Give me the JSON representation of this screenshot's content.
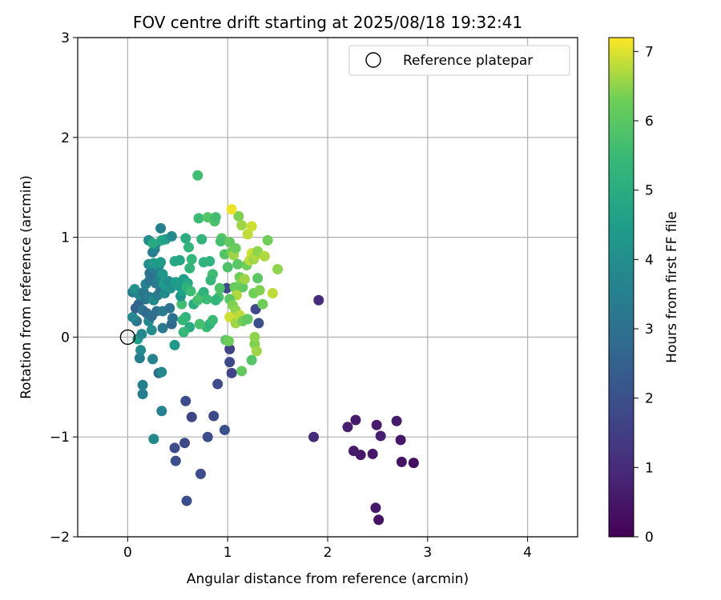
{
  "chart_data": {
    "type": "scatter",
    "title": "FOV centre drift starting at 2025/08/18 19:32:41",
    "xlabel": "Angular distance from reference (arcmin)",
    "ylabel": "Rotation from reference (arcmin)",
    "xlim": [
      -0.5,
      4.5
    ],
    "ylim": [
      -2,
      3
    ],
    "xticks": [
      "0",
      "1",
      "2",
      "3",
      "4"
    ],
    "yticks": [
      "−2",
      "−1",
      "0",
      "1",
      "2",
      "3"
    ],
    "grid": true,
    "legend": {
      "position": "top-right",
      "entries": [
        "Reference platepar"
      ]
    },
    "reference_point": {
      "x": 0,
      "y": 0
    },
    "colorbar": {
      "label": "Hours from first FF file",
      "range": [
        0,
        7.2
      ],
      "ticks": [
        "0",
        "1",
        "2",
        "3",
        "4",
        "5",
        "6",
        "7"
      ],
      "colormap": "viridis"
    },
    "series": [
      {
        "points": [
          [
            1.91,
            0.37,
            1.0
          ],
          [
            1.86,
            -1.0,
            1.0
          ],
          [
            2.2,
            -0.9,
            0.7
          ],
          [
            2.28,
            -0.83,
            0.6
          ],
          [
            2.26,
            -1.14,
            0.6
          ],
          [
            2.33,
            -1.18,
            0.5
          ],
          [
            2.45,
            -1.17,
            0.5
          ],
          [
            2.49,
            -0.88,
            0.6
          ],
          [
            2.53,
            -0.99,
            0.7
          ],
          [
            2.69,
            -0.84,
            0.6
          ],
          [
            2.73,
            -1.03,
            0.5
          ],
          [
            2.74,
            -1.25,
            0.4
          ],
          [
            2.86,
            -1.26,
            0.3
          ],
          [
            2.48,
            -1.71,
            0.5
          ],
          [
            2.51,
            -1.83,
            0.4
          ],
          [
            0.59,
            -1.64,
            1.9
          ],
          [
            0.73,
            -1.37,
            1.9
          ],
          [
            0.48,
            -1.24,
            2.0
          ],
          [
            0.47,
            -1.11,
            1.9
          ],
          [
            0.57,
            -1.06,
            1.8
          ],
          [
            0.8,
            -1.0,
            1.9
          ],
          [
            0.58,
            -0.64,
            1.9
          ],
          [
            0.64,
            -0.8,
            1.7
          ],
          [
            0.86,
            -0.79,
            1.8
          ],
          [
            0.97,
            -0.93,
            2.0
          ],
          [
            0.9,
            -0.47,
            1.9
          ],
          [
            1.04,
            -0.36,
            1.7
          ],
          [
            1.02,
            -0.25,
            1.8
          ],
          [
            1.02,
            -0.12,
            1.7
          ],
          [
            0.99,
            0.49,
            1.8
          ],
          [
            1.28,
            0.28,
            1.8
          ],
          [
            1.31,
            0.14,
            2.0
          ],
          [
            0.26,
            -1.02,
            3.8
          ],
          [
            0.34,
            -0.74,
            3.6
          ],
          [
            0.15,
            -0.48,
            3.5
          ],
          [
            0.15,
            -0.57,
            3.5
          ],
          [
            0.31,
            -0.36,
            2.8
          ],
          [
            0.34,
            -0.35,
            3.8
          ],
          [
            0.25,
            -0.22,
            3.6
          ],
          [
            0.12,
            -0.21,
            3.5
          ],
          [
            0.13,
            -0.13,
            3.9
          ],
          [
            0.47,
            -0.08,
            4.3
          ],
          [
            0.1,
            -0.02,
            4.5
          ],
          [
            0.14,
            0.03,
            3.8
          ],
          [
            0.24,
            0.07,
            4.0
          ],
          [
            0.21,
            0.16,
            3.8
          ],
          [
            0.35,
            0.09,
            3.3
          ],
          [
            0.44,
            0.13,
            2.8
          ],
          [
            0.45,
            0.19,
            3.0
          ],
          [
            0.09,
            0.16,
            3.2
          ],
          [
            0.05,
            0.2,
            3.8
          ],
          [
            0.08,
            0.29,
            2.5
          ],
          [
            0.11,
            0.33,
            2.6
          ],
          [
            0.15,
            0.27,
            3.2
          ],
          [
            0.19,
            0.24,
            2.8
          ],
          [
            0.24,
            0.21,
            2.9
          ],
          [
            0.29,
            0.26,
            3.0
          ],
          [
            0.35,
            0.26,
            3.4
          ],
          [
            0.42,
            0.29,
            3.1
          ],
          [
            0.05,
            0.45,
            3.4
          ],
          [
            0.07,
            0.48,
            4.1
          ],
          [
            0.12,
            0.42,
            3.7
          ],
          [
            0.16,
            0.45,
            3.2
          ],
          [
            0.18,
            0.38,
            3.1
          ],
          [
            0.22,
            0.4,
            3.4
          ],
          [
            0.26,
            0.37,
            3.9
          ],
          [
            0.3,
            0.42,
            3.5
          ],
          [
            0.33,
            0.47,
            3.0
          ],
          [
            0.37,
            0.44,
            3.9
          ],
          [
            0.43,
            0.49,
            4.2
          ],
          [
            0.18,
            0.53,
            3.6
          ],
          [
            0.22,
            0.57,
            3.2
          ],
          [
            0.25,
            0.6,
            3.1
          ],
          [
            0.28,
            0.54,
            3.3
          ],
          [
            0.32,
            0.6,
            3.7
          ],
          [
            0.36,
            0.53,
            4.4
          ],
          [
            0.41,
            0.56,
            4.0
          ],
          [
            0.48,
            0.55,
            4.5
          ],
          [
            0.52,
            0.51,
            4.1
          ],
          [
            0.56,
            0.58,
            4.5
          ],
          [
            0.6,
            0.54,
            4.8
          ],
          [
            0.22,
            0.64,
            3.0
          ],
          [
            0.27,
            0.68,
            3.4
          ],
          [
            0.31,
            0.71,
            3.8
          ],
          [
            0.35,
            0.63,
            4.3
          ],
          [
            0.21,
            0.73,
            4.0
          ],
          [
            0.26,
            0.74,
            4.4
          ],
          [
            0.33,
            0.75,
            4.4
          ],
          [
            0.25,
            0.85,
            3.4
          ],
          [
            0.27,
            0.88,
            3.6
          ],
          [
            0.28,
            0.93,
            4.0
          ],
          [
            0.21,
            0.97,
            3.9
          ],
          [
            0.25,
            0.94,
            4.9
          ],
          [
            0.34,
            0.97,
            4.8
          ],
          [
            0.38,
            0.98,
            4.6
          ],
          [
            0.44,
            1.01,
            3.9
          ],
          [
            0.33,
            1.09,
            3.5
          ],
          [
            0.47,
            0.76,
            4.9
          ],
          [
            0.52,
            0.77,
            4.8
          ],
          [
            0.58,
            0.99,
            5.0
          ],
          [
            0.61,
            0.9,
            5.3
          ],
          [
            0.62,
            0.69,
            5.3
          ],
          [
            0.64,
            0.78,
            5.4
          ],
          [
            0.7,
            1.62,
            5.6
          ],
          [
            0.71,
            1.19,
            5.5
          ],
          [
            0.74,
            0.98,
            5.3
          ],
          [
            0.76,
            0.75,
            5.2
          ],
          [
            0.82,
            0.76,
            5.2
          ],
          [
            0.8,
            1.2,
            5.9
          ],
          [
            0.87,
            1.16,
            5.8
          ],
          [
            0.88,
            1.2,
            5.6
          ],
          [
            0.85,
            0.63,
            5.6
          ],
          [
            0.83,
            0.57,
            5.4
          ],
          [
            0.91,
            0.4,
            5.7
          ],
          [
            0.88,
            0.37,
            5.3
          ],
          [
            0.92,
            0.49,
            5.8
          ],
          [
            0.94,
            0.99,
            6.0
          ],
          [
            0.93,
            0.96,
            5.7
          ],
          [
            0.97,
            0.83,
            5.9
          ],
          [
            1.0,
            0.7,
            5.8
          ],
          [
            1.02,
            0.95,
            6.1
          ],
          [
            1.04,
            0.85,
            6.3
          ],
          [
            1.06,
            0.82,
            6.6
          ],
          [
            1.08,
            0.89,
            6.2
          ],
          [
            1.1,
            0.73,
            6.0
          ],
          [
            1.12,
            0.6,
            6.3
          ],
          [
            1.14,
            0.55,
            6.4
          ],
          [
            1.15,
            0.5,
            6.1
          ],
          [
            1.17,
            0.58,
            6.6
          ],
          [
            1.19,
            0.72,
            6.3
          ],
          [
            1.22,
            0.77,
            6.8
          ],
          [
            1.24,
            0.84,
            6.9
          ],
          [
            1.26,
            0.78,
            6.6
          ],
          [
            1.28,
            0.82,
            6.7
          ],
          [
            1.3,
            0.86,
            6.5
          ],
          [
            1.2,
            1.03,
            6.8
          ],
          [
            1.24,
            1.11,
            6.9
          ],
          [
            1.11,
            1.21,
            6.4
          ],
          [
            1.14,
            1.12,
            6.6
          ],
          [
            1.04,
            1.28,
            7.1
          ],
          [
            1.07,
            0.5,
            6.2
          ],
          [
            1.09,
            0.42,
            6.7
          ],
          [
            1.02,
            0.38,
            6.0
          ],
          [
            1.05,
            0.32,
            6.4
          ],
          [
            1.08,
            0.27,
            6.5
          ],
          [
            1.02,
            0.2,
            6.9
          ],
          [
            1.08,
            0.14,
            6.6
          ],
          [
            1.12,
            0.22,
            6.8
          ],
          [
            1.15,
            0.16,
            6.3
          ],
          [
            1.2,
            0.18,
            6.1
          ],
          [
            1.26,
            0.44,
            6.3
          ],
          [
            1.3,
            0.59,
            6.0
          ],
          [
            1.32,
            0.47,
            6.4
          ],
          [
            1.35,
            0.33,
            6.3
          ],
          [
            1.37,
            0.81,
            6.7
          ],
          [
            1.4,
            0.97,
            6.3
          ],
          [
            1.45,
            0.44,
            6.8
          ],
          [
            1.5,
            0.68,
            6.5
          ],
          [
            0.98,
            -0.03,
            6.0
          ],
          [
            1.01,
            -0.04,
            6.3
          ],
          [
            1.24,
            -0.23,
            5.9
          ],
          [
            1.14,
            -0.34,
            6.1
          ],
          [
            1.27,
            -0.07,
            6.4
          ],
          [
            1.29,
            -0.14,
            6.6
          ],
          [
            1.27,
            0.0,
            6.5
          ],
          [
            0.79,
            0.1,
            5.5
          ],
          [
            0.82,
            0.13,
            5.2
          ],
          [
            0.85,
            0.17,
            5.5
          ],
          [
            0.72,
            0.13,
            5.7
          ],
          [
            0.62,
            0.1,
            5.0
          ],
          [
            0.56,
            0.05,
            5.4
          ],
          [
            0.58,
            0.2,
            5.3
          ],
          [
            0.55,
            0.17,
            5.4
          ],
          [
            0.54,
            0.33,
            5.6
          ],
          [
            0.66,
            0.33,
            5.0
          ],
          [
            0.7,
            0.37,
            5.6
          ],
          [
            0.73,
            0.41,
            5.8
          ],
          [
            0.76,
            0.45,
            5.2
          ],
          [
            0.79,
            0.38,
            5.5
          ],
          [
            0.53,
            0.41,
            4.2
          ],
          [
            0.55,
            0.46,
            4.6
          ],
          [
            0.5,
            0.52,
            4.4
          ],
          [
            0.59,
            0.5,
            5.1
          ],
          [
            0.63,
            0.46,
            5.5
          ]
        ]
      }
    ]
  }
}
